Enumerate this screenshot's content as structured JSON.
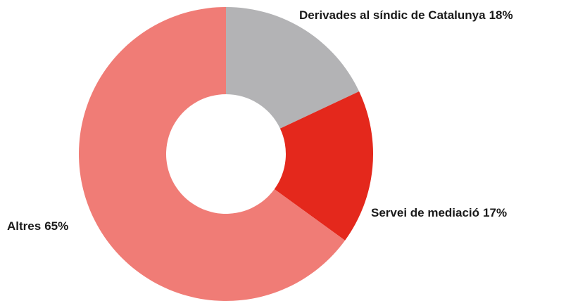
{
  "chart_data": {
    "type": "pie",
    "categories": [
      "Derivades al síndic de Catalunya",
      "Servei de mediació",
      "Altres"
    ],
    "values": [
      18,
      17,
      65
    ],
    "value_labels": [
      "18%",
      "17%",
      "65%"
    ],
    "colors": [
      "#b3b3b5",
      "#e4281c",
      "#f07c76"
    ]
  }
}
